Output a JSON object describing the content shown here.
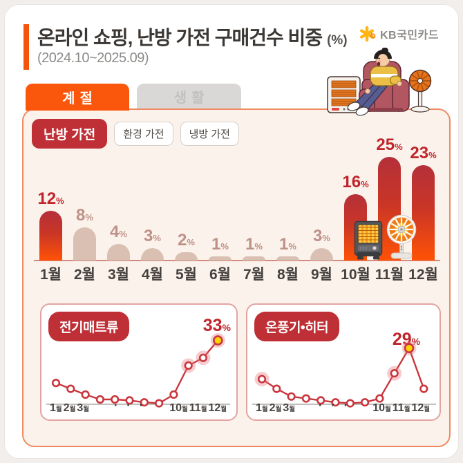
{
  "header": {
    "title": "온라인 쇼핑, 난방 가전 구매건수 비중",
    "title_unit": "(%)",
    "subtitle": "(2024.10~2025.09)",
    "brand": "KB국민카드"
  },
  "tabs": [
    {
      "label": "계절",
      "active": true
    },
    {
      "label": "생활",
      "active": false
    }
  ],
  "chips": [
    {
      "label": "난방 가전",
      "active": true
    },
    {
      "label": "환경 가전",
      "active": false
    },
    {
      "label": "냉방 가전",
      "active": false
    }
  ],
  "icons": {
    "brand_star": "kb-star-icon",
    "heater": "heater-icon",
    "fan_heater": "fan-heater-icon",
    "illustration": "person-relaxing-between-heater-and-fan"
  },
  "colors": {
    "accent_orange": "#F4540C",
    "tab_active": "#FA570D",
    "chip_active": "#BE2F36",
    "panel_bg": "#FBF2EB",
    "panel_border": "#EE8A5F",
    "bar_red_top": "#B5303A",
    "bar_red_bottom": "#FF5206",
    "bar_beige": "#D9C0B3",
    "label_red": "#C0242C",
    "label_beige": "#BE9187",
    "line_red": "#C9363D",
    "peak_yellow": "#FFD400",
    "card_border": "#E2A4A2",
    "baseline": "#D18A80"
  },
  "chart_data": [
    {
      "type": "bar",
      "label": "난방 가전",
      "unit": "%",
      "categories": [
        "1월",
        "2월",
        "3월",
        "4월",
        "5월",
        "6월",
        "7월",
        "8월",
        "9월",
        "10월",
        "11월",
        "12월"
      ],
      "values": [
        12,
        8,
        4,
        3,
        2,
        1,
        1,
        1,
        3,
        16,
        25,
        23
      ],
      "highlight_indices": [
        0,
        9,
        10,
        11
      ],
      "ylim": [
        0,
        25
      ],
      "grid": false,
      "legend": false
    },
    {
      "type": "line",
      "title": "전기매트류",
      "unit": "%",
      "categories": [
        "1월",
        "2월",
        "3월",
        "4월",
        "5월",
        "6월",
        "7월",
        "8월",
        "9월",
        "10월",
        "11월",
        "12월"
      ],
      "values": [
        11,
        8,
        5,
        2.5,
        2.5,
        2,
        1,
        0.5,
        5,
        20,
        24,
        33
      ],
      "labeled_point": {
        "category": "12월",
        "value": 33
      },
      "peak_index": 11,
      "halo_indices": [
        9,
        10
      ],
      "axis_left": [
        "1월",
        "2월",
        "3월"
      ],
      "axis_dots": "· · ·",
      "axis_right": [
        "10월",
        "11월",
        "12월"
      ]
    },
    {
      "type": "line",
      "title": "온풍기•히터",
      "unit": "%",
      "categories": [
        "1월",
        "2월",
        "3월",
        "4월",
        "5월",
        "6월",
        "7월",
        "8월",
        "9월",
        "10월",
        "11월",
        "12월"
      ],
      "values": [
        13,
        8,
        4,
        3,
        2,
        1,
        0.5,
        1,
        3,
        16,
        29,
        8
      ],
      "labeled_point": {
        "category": "11월",
        "value": 29
      },
      "peak_index": 10,
      "halo_indices": [
        0,
        9
      ],
      "axis_left": [
        "1월",
        "2월",
        "3월"
      ],
      "axis_dots": "· · ·",
      "axis_right": [
        "10월",
        "11월",
        "12월"
      ]
    }
  ]
}
